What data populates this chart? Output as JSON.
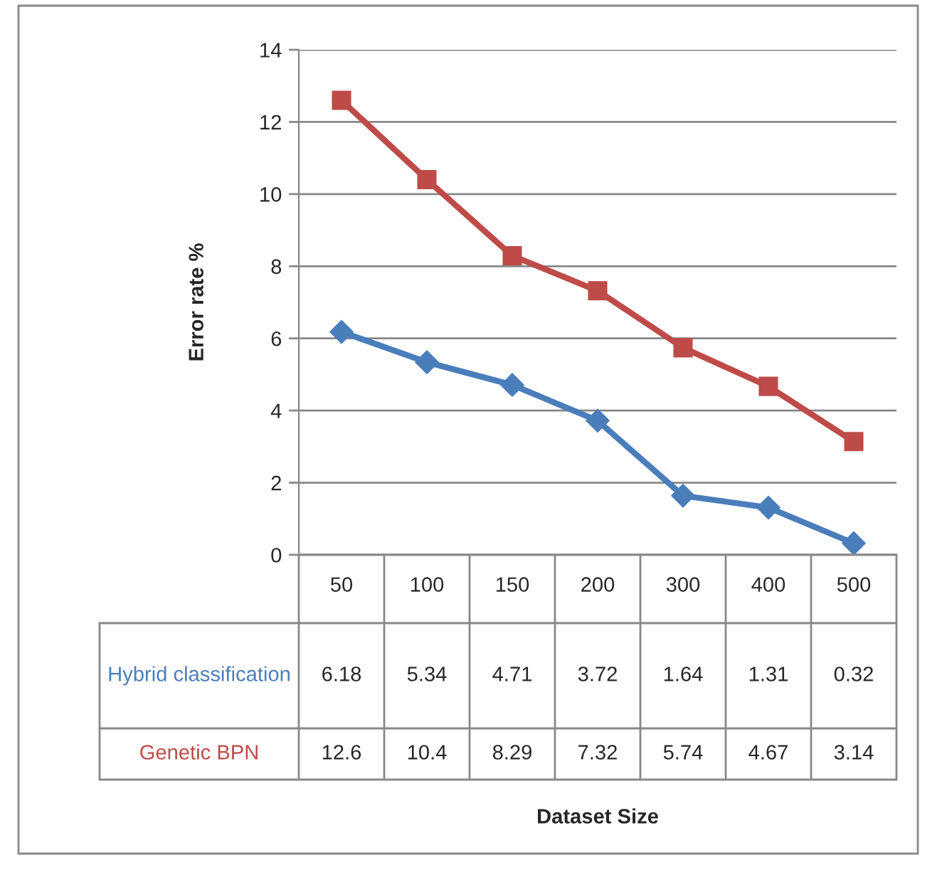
{
  "chart_data": {
    "type": "line",
    "annotations": [
      "Dataset Size"
    ],
    "ylabel": "Error rate %",
    "categories": [
      "50",
      "100",
      "150",
      "200",
      "300",
      "400",
      "500"
    ],
    "series": [
      {
        "name": "Hybrid classification",
        "color": "#4a7ebb",
        "marker": "diamond",
        "values": [
          6.18,
          5.34,
          4.71,
          3.72,
          1.64,
          1.31,
          0.32
        ]
      },
      {
        "name": "Genetic BPN",
        "color": "#be4b48",
        "marker": "square",
        "values": [
          12.6,
          10.4,
          8.29,
          7.32,
          5.74,
          4.67,
          3.14
        ]
      }
    ],
    "ylim": [
      0,
      14
    ],
    "yticks": [
      0,
      2,
      4,
      6,
      8,
      10,
      12,
      14
    ],
    "grid": "y",
    "legend": false,
    "data_labels": true
  }
}
